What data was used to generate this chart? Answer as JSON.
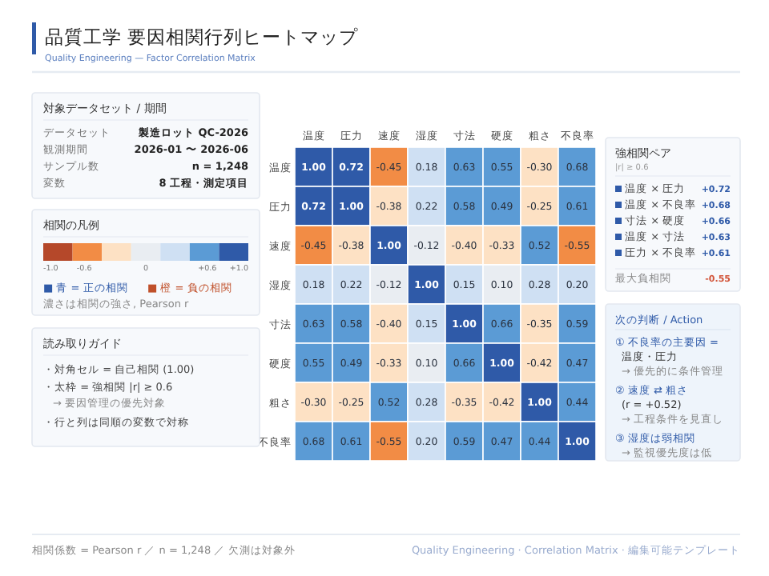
{
  "chart_data": [
    {
      "type": "heatmap",
      "title": "品質工学 要因相関行列ヒートマップ",
      "subtitle": "Quality Engineering — Factor Correlation Matrix",
      "categories": [
        "温度",
        "圧力",
        "速度",
        "湿度",
        "寸法",
        "硬度",
        "粗さ",
        "不良率"
      ],
      "y_categories": [
        "温度",
        "圧力",
        "速度",
        "湿度",
        "寸法",
        "硬度",
        "粗さ",
        "不良率"
      ],
      "cells": [
        [
          1.0,
          0.72,
          -0.45,
          0.18,
          0.63,
          0.55,
          -0.3,
          0.68
        ],
        [
          0.72,
          1.0,
          -0.38,
          0.22,
          0.58,
          0.49,
          -0.25,
          0.61
        ],
        [
          -0.45,
          -0.38,
          1.0,
          -0.12,
          -0.4,
          -0.33,
          0.52,
          -0.55
        ],
        [
          0.18,
          0.22,
          -0.12,
          1.0,
          0.15,
          0.1,
          0.28,
          0.2
        ],
        [
          0.63,
          0.58,
          -0.4,
          0.15,
          1.0,
          0.66,
          -0.35,
          0.59
        ],
        [
          0.55,
          0.49,
          -0.33,
          0.1,
          0.66,
          1.0,
          -0.42,
          0.47
        ],
        [
          -0.3,
          -0.25,
          0.52,
          0.28,
          -0.35,
          -0.42,
          1.0,
          0.44
        ],
        [
          0.68,
          0.61,
          -0.55,
          0.2,
          0.59,
          0.47,
          0.44,
          1.0
        ]
      ],
      "cell_labels": [
        [
          "1.00",
          "0.72",
          "-0.45",
          "0.18",
          "0.63",
          "0.55",
          "-0.30",
          "0.68"
        ],
        [
          "0.72",
          "1.00",
          "-0.38",
          "0.22",
          "0.58",
          "0.49",
          "-0.25",
          "0.61"
        ],
        [
          "-0.45",
          "-0.38",
          "1.00",
          "-0.12",
          "-0.40",
          "-0.33",
          "0.52",
          "-0.55"
        ],
        [
          "0.18",
          "0.22",
          "-0.12",
          "1.00",
          "0.15",
          "0.10",
          "0.28",
          "0.20"
        ],
        [
          "0.63",
          "0.58",
          "-0.40",
          "0.15",
          "1.00",
          "0.66",
          "-0.35",
          "0.59"
        ],
        [
          "0.55",
          "0.49",
          "-0.33",
          "0.10",
          "0.66",
          "1.00",
          "-0.42",
          "0.47"
        ],
        [
          "-0.30",
          "-0.25",
          "0.52",
          "0.28",
          "-0.35",
          "-0.42",
          "1.00",
          "0.44"
        ],
        [
          "0.68",
          "0.61",
          "-0.55",
          "0.20",
          "0.59",
          "0.47",
          "0.44",
          "1.00"
        ]
      ],
      "clabel": "相関の凡例",
      "clim": [
        -1,
        1
      ],
      "cticks": [
        {
          "value": -1,
          "label": "-1.0"
        },
        {
          "value": -0.6,
          "label": "-0.6"
        },
        0,
        {
          "value": 0.6,
          "label": "+0.6"
        },
        {
          "value": 1,
          "label": "+1.0"
        }
      ],
      "annotations": [
        "■ 青 = 正の相関",
        "■ 橙 = 負の相関",
        "濃さは相関の強さ, Pearson r",
        "相関係数 = Pearson r ／ n = 1,248 ／ 欠測は対象外",
        "Quality Engineering · Correlation Matrix · 編集可能テンプレート"
      ]
    },
    {
      "type": "other",
      "title": "対象データセット / 期間",
      "annotations": [
        "データセット",
        "製造ロット QC-2026",
        "観測期間",
        "2026-01 〜 2026-06",
        "サンプル数",
        "n = 1,248",
        "変数",
        "8 工程・測定項目"
      ]
    },
    {
      "type": "other",
      "title": "読み取りガイド",
      "annotations": [
        "・対角セル = 自己相関 (1.00)",
        "・太枠 = 強相関 |r| ≥ 0.6",
        "→ 要因管理の優先対象",
        "・行と列は同順の変数で対称"
      ]
    },
    {
      "type": "other",
      "title": "強相関ペア",
      "subtitle": "|r| ≥ 0.6",
      "annotations": [
        "温度 × 圧力",
        "+0.72",
        "温度 × 不良率",
        "+0.68",
        "寸法 × 硬度",
        "+0.66",
        "温度 × 寸法",
        "+0.63",
        "圧力 × 不良率",
        "+0.61",
        "最大負相関",
        "-0.55"
      ]
    },
    {
      "type": "other",
      "title": "次の判断 / Action",
      "annotations": [
        "① 不良率の主要因 =",
        "温度・圧力",
        "→ 優先的に条件管理",
        "② 速度 ⇄ 粗さ",
        "(r = +0.52)",
        "→ 工程条件を見直し",
        "③ 湿度は弱相関",
        "→ 監視優先度は低"
      ]
    }
  ]
}
